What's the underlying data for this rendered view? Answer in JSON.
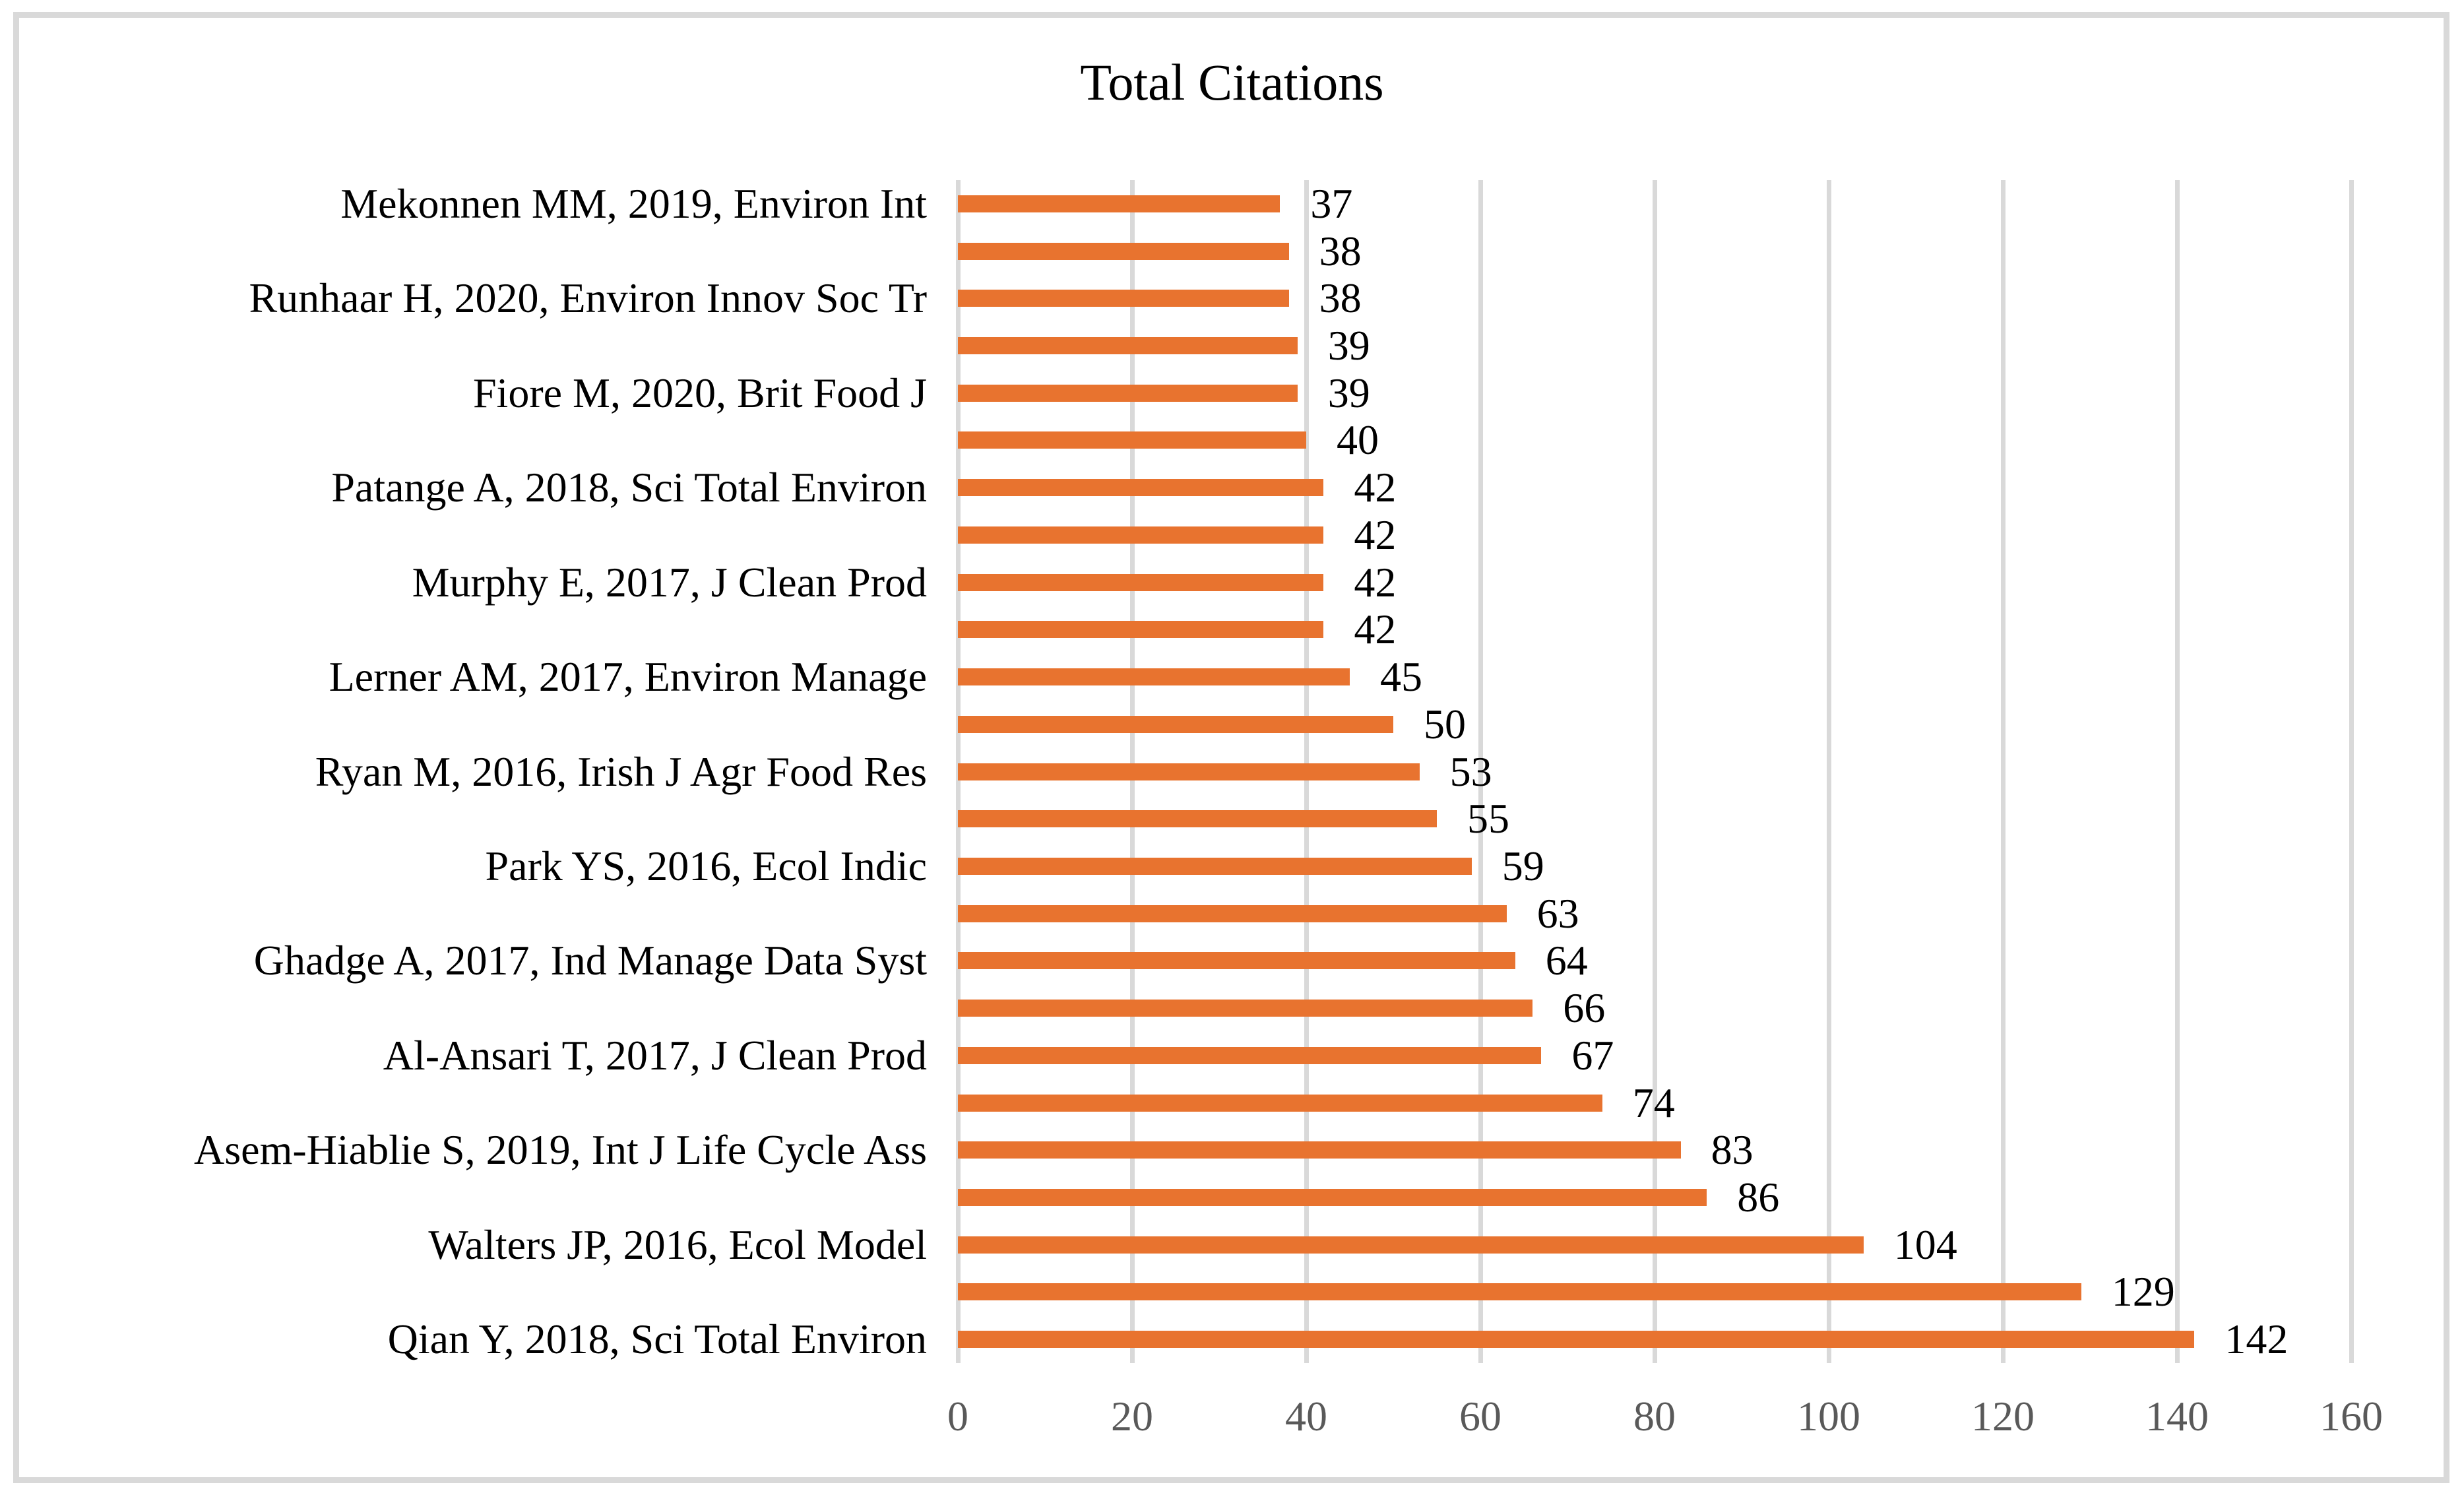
{
  "chart_data": {
    "type": "bar",
    "orientation": "horizontal",
    "title": "Total Citations",
    "categories": [
      "Mekonnen MM, 2019, Environ Int",
      "",
      "Runhaar H, 2020, Environ Innov Soc Tr",
      "",
      "Fiore M, 2020, Brit Food J",
      "",
      "Patange A, 2018, Sci Total Environ",
      "",
      "Murphy E, 2017, J Clean Prod",
      "",
      "Lerner AM, 2017, Environ Manage",
      "",
      "Ryan M, 2016, Irish J Agr Food Res",
      "",
      "Park YS, 2016, Ecol Indic",
      "",
      "Ghadge A, 2017, Ind Manage Data Syst",
      "",
      "Al-Ansari T, 2017, J Clean Prod",
      "",
      "Asem-Hiablie S, 2019, Int J Life Cycle Ass",
      "",
      "Walters JP, 2016, Ecol Model",
      "",
      "Qian Y, 2018, Sci Total Environ"
    ],
    "values": [
      37,
      38,
      38,
      39,
      39,
      40,
      42,
      42,
      42,
      42,
      45,
      50,
      53,
      55,
      59,
      63,
      64,
      66,
      67,
      74,
      83,
      86,
      104,
      129,
      142
    ],
    "value_labels_shown": true,
    "xlabel": "",
    "ylabel": "",
    "xlim": [
      0,
      160
    ],
    "x_ticks": [
      0,
      20,
      40,
      60,
      80,
      100,
      120,
      140,
      160
    ],
    "grid": "vertical",
    "legend": "none",
    "colors": {
      "bar": "#E8732F",
      "gridline": "#D9D9D9",
      "tick_label": "#595959",
      "text": "#000000",
      "figure_border": "#D9D9D9",
      "background": "#FFFFFF"
    }
  }
}
